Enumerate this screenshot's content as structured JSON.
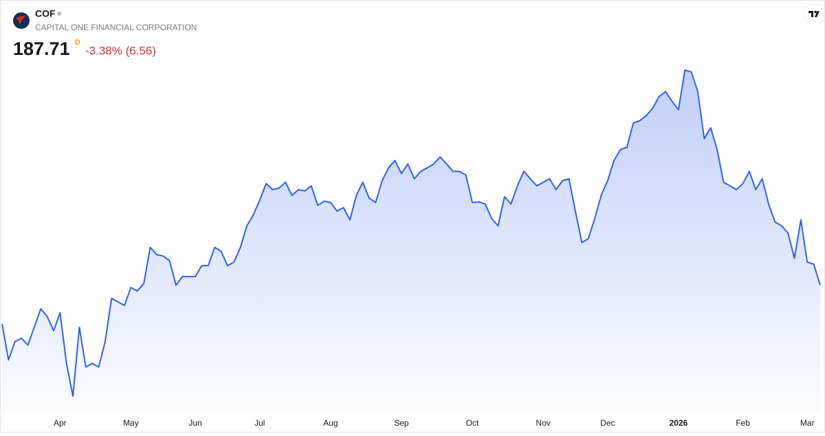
{
  "header": {
    "symbol": "COF",
    "company": "CAPITAL ONE FINANCIAL CORPORATION",
    "price": "187.71",
    "interval": "D",
    "change": "-3.38% (6.56)"
  },
  "chart_data": {
    "type": "line",
    "color": "#2f5fe8",
    "categories": [
      null,
      null,
      null,
      null,
      null,
      null,
      null,
      null,
      null,
      "Apr",
      null,
      null,
      null,
      null,
      null,
      null,
      null,
      null,
      null,
      null,
      "May",
      null,
      null,
      null,
      null,
      null,
      null,
      null,
      null,
      null,
      "Jun",
      null,
      null,
      null,
      null,
      null,
      null,
      null,
      null,
      null,
      "Jul",
      null,
      null,
      null,
      null,
      null,
      null,
      null,
      null,
      null,
      null,
      "Aug",
      null,
      null,
      null,
      null,
      null,
      null,
      null,
      null,
      null,
      null,
      "Sep",
      null,
      null,
      null,
      null,
      null,
      null,
      null,
      null,
      null,
      null,
      "Oct",
      null,
      null,
      null,
      null,
      null,
      null,
      null,
      null,
      null,
      null,
      "Nov",
      null,
      null,
      null,
      null,
      null,
      null,
      null,
      null,
      null,
      "Dec",
      null,
      null,
      null,
      null,
      null,
      null,
      null,
      null,
      null,
      null,
      "2026",
      null,
      null,
      null,
      null,
      null,
      null,
      null,
      null,
      null,
      "Feb",
      null,
      null,
      null,
      null,
      null,
      null,
      null,
      null,
      null,
      "Mar",
      null,
      null
    ],
    "values": [
      175.7,
      164.4,
      170.1,
      171.2,
      169.0,
      174.6,
      180.3,
      178.0,
      173.5,
      179.1,
      163.3,
      153.1,
      174.6,
      162.2,
      163.3,
      162.2,
      170.1,
      183.6,
      182.5,
      181.4,
      187.0,
      185.9,
      188.2,
      199.5,
      197.2,
      196.8,
      195.4,
      187.7,
      190.4,
      190.4,
      190.4,
      193.8,
      193.8,
      199.5,
      198.3,
      193.8,
      194.9,
      199.5,
      206.2,
      209.6,
      214.2,
      219.4,
      217.5,
      218.0,
      219.8,
      215.7,
      217.5,
      217.1,
      218.7,
      212.6,
      213.9,
      213.5,
      210.8,
      211.9,
      208.1,
      215.7,
      219.8,
      214.8,
      213.5,
      220.3,
      224.3,
      226.6,
      222.5,
      225.5,
      220.9,
      223.2,
      224.3,
      225.5,
      227.7,
      225.5,
      223.2,
      223.2,
      222.1,
      213.5,
      213.7,
      213.0,
      208.5,
      206.2,
      215.3,
      213.0,
      218.7,
      223.2,
      220.9,
      218.7,
      219.8,
      220.9,
      217.5,
      220.3,
      220.9,
      210.8,
      201.0,
      202.2,
      208.5,
      215.7,
      220.3,
      226.6,
      230.0,
      230.7,
      238.3,
      239.0,
      240.6,
      242.9,
      246.5,
      248.1,
      245.1,
      242.4,
      254.8,
      254.2,
      248.1,
      233.4,
      236.8,
      230.0,
      219.8,
      218.7,
      217.5,
      219.4,
      223.2,
      217.5,
      220.9,
      213.0,
      207.4,
      206.2,
      204.0,
      196.1,
      208.1,
      194.9,
      194.27,
      187.71
    ]
  }
}
